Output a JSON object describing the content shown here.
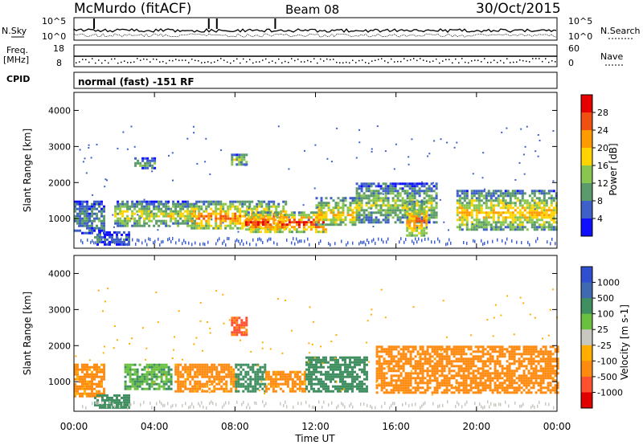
{
  "header": {
    "station": "McMurdo (fitACF)",
    "beam": "Beam 08",
    "date": "30/Oct/2015"
  },
  "noise_panel": {
    "left_label": "N.Sky",
    "right_label": "N.Search",
    "left_ticks": [
      "10^5",
      "10^0"
    ],
    "right_ticks": [
      "10^5",
      "10^0"
    ]
  },
  "freq_panel": {
    "left_label_line1": "Freq.",
    "left_label_line2": "[MHz]",
    "left_ticks": [
      "18",
      "8"
    ],
    "right_label": "Nave",
    "right_ticks": [
      "60",
      "0"
    ]
  },
  "cpid_panel": {
    "label": "CPID",
    "text": "normal (fast) -151 RF"
  },
  "x_axis": {
    "label": "Time UT",
    "ticks": [
      "00:00",
      "04:00",
      "08:00",
      "12:00",
      "16:00",
      "20:00",
      "00:00"
    ]
  },
  "power_colorbar": {
    "label": "Power [dB]",
    "ticks": [
      "28",
      "24",
      "20",
      "16",
      "12",
      "8",
      "4"
    ],
    "colors": [
      "#1010ff",
      "#3f60c8",
      "#5b9a6a",
      "#88c650",
      "#ffd400",
      "#ff9a00",
      "#f05010",
      "#e60000"
    ]
  },
  "velocity_colorbar": {
    "label": "Velocity [m s-1]",
    "ticks": [
      "1000",
      "500",
      "100",
      "25",
      "-25",
      "-100",
      "-500",
      "-1000"
    ],
    "colors": [
      "#2f4fd0",
      "#3f6ab0",
      "#3f8f60",
      "#6cc040",
      "#c8c8c0",
      "#ffae00",
      "#ff8a10",
      "#ff5030",
      "#e00000"
    ]
  },
  "chart_data": [
    {
      "type": "heatmap",
      "title": "Power",
      "xlabel": "Time UT",
      "ylabel": "Slant Range [km]",
      "xlim": [
        0,
        24
      ],
      "ylim": [
        180,
        4500
      ],
      "y_ticks": [
        1000,
        2000,
        3000,
        4000
      ],
      "colorbar": {
        "label": "Power [dB]",
        "range": [
          0,
          32
        ]
      },
      "echo_regions": [
        {
          "t_start": 0.0,
          "t_end": 1.5,
          "range_low": 600,
          "range_high": 1500,
          "power_db": 10
        },
        {
          "t_start": 1.0,
          "t_end": 2.7,
          "range_low": 300,
          "range_high": 650,
          "power_db": 8
        },
        {
          "t_start": 2.0,
          "t_end": 6.0,
          "range_low": 800,
          "range_high": 1500,
          "power_db": 17
        },
        {
          "t_start": 5.8,
          "t_end": 10.5,
          "range_low": 700,
          "range_high": 1500,
          "power_db": 24
        },
        {
          "t_start": 8.5,
          "t_end": 12.5,
          "range_low": 650,
          "range_high": 1200,
          "power_db": 28
        },
        {
          "t_start": 12.0,
          "t_end": 14.0,
          "range_low": 800,
          "range_high": 1600,
          "power_db": 20
        },
        {
          "t_start": 14.0,
          "t_end": 18.0,
          "range_low": 900,
          "range_high": 2000,
          "power_db": 15
        },
        {
          "t_start": 16.5,
          "t_end": 17.5,
          "range_low": 500,
          "range_high": 1500,
          "power_db": 24
        },
        {
          "t_start": 19.0,
          "t_end": 24.0,
          "range_low": 700,
          "range_high": 1800,
          "power_db": 20
        },
        {
          "t_start": 3.0,
          "t_end": 4.0,
          "range_low": 2400,
          "range_high": 2700,
          "power_db": 12
        },
        {
          "t_start": 7.8,
          "t_end": 8.6,
          "range_low": 2500,
          "range_high": 2800,
          "power_db": 16
        }
      ]
    },
    {
      "type": "heatmap",
      "title": "Velocity",
      "xlabel": "Time UT",
      "ylabel": "Slant Range [km]",
      "xlim": [
        0,
        24
      ],
      "ylim": [
        180,
        4500
      ],
      "y_ticks": [
        1000,
        2000,
        3000,
        4000
      ],
      "colorbar": {
        "label": "Velocity [m s-1]",
        "range": [
          -1000,
          1000
        ]
      },
      "echo_regions": [
        {
          "t_start": 0.0,
          "t_end": 1.5,
          "range_low": 600,
          "range_high": 1500,
          "velocity": -150
        },
        {
          "t_start": 1.0,
          "t_end": 2.7,
          "range_low": 300,
          "range_high": 650,
          "velocity": 200
        },
        {
          "t_start": 2.5,
          "t_end": 4.8,
          "range_low": 800,
          "range_high": 1500,
          "velocity": 100
        },
        {
          "t_start": 5.0,
          "t_end": 8.0,
          "range_low": 700,
          "range_high": 1500,
          "velocity": -150
        },
        {
          "t_start": 8.0,
          "t_end": 9.5,
          "range_low": 700,
          "range_high": 1500,
          "velocity": 200
        },
        {
          "t_start": 9.5,
          "t_end": 11.5,
          "range_low": 700,
          "range_high": 1300,
          "velocity": -150
        },
        {
          "t_start": 11.5,
          "t_end": 14.5,
          "range_low": 700,
          "range_high": 1700,
          "velocity": 300
        },
        {
          "t_start": 15.0,
          "t_end": 24.0,
          "range_low": 700,
          "range_high": 2000,
          "velocity": -200
        },
        {
          "t_start": 7.8,
          "t_end": 8.6,
          "range_low": 2300,
          "range_high": 2800,
          "velocity": -600
        }
      ]
    }
  ]
}
